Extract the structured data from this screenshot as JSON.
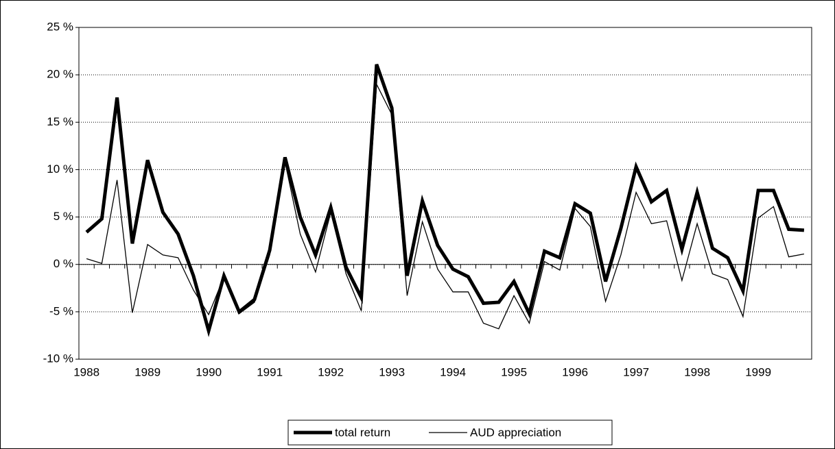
{
  "chart_data": {
    "type": "line",
    "categories": [
      "1988",
      null,
      null,
      null,
      "1989",
      null,
      null,
      null,
      "1990",
      null,
      null,
      null,
      "1991",
      null,
      null,
      null,
      "1992",
      null,
      null,
      null,
      "1993",
      null,
      null,
      null,
      "1994",
      null,
      null,
      null,
      "1995",
      null,
      null,
      null,
      "1996",
      null,
      null,
      null,
      "1997",
      null,
      null,
      null,
      "1998",
      null,
      null,
      null,
      "1999",
      null,
      null,
      null
    ],
    "series": [
      {
        "name": "total return",
        "color": "#000000",
        "values": [
          3.4,
          4.8,
          17.6,
          2.2,
          11.0,
          5.5,
          3.2,
          -1.2,
          -7.0,
          -1.2,
          -5.0,
          -3.7,
          1.5,
          11.3,
          5.0,
          1.0,
          6.0,
          -0.3,
          -3.5,
          21.1,
          16.5,
          -1.2,
          6.7,
          2.0,
          -0.5,
          -1.3,
          -4.1,
          -4.0,
          -1.8,
          -5.2,
          1.4,
          0.7,
          6.4,
          5.4,
          -1.8,
          3.8,
          10.3,
          6.6,
          7.8,
          1.6,
          7.6,
          1.7,
          0.7,
          -2.8,
          7.8,
          7.8,
          3.7,
          3.6
        ]
      },
      {
        "name": "AUD appreciation",
        "color": "#000000",
        "values": [
          0.6,
          0.1,
          8.9,
          -5.1,
          2.1,
          1.0,
          0.7,
          -2.7,
          -5.3,
          -1.3,
          -5.2,
          -4.0,
          1.0,
          10.8,
          3.2,
          -0.8,
          5.5,
          -1.0,
          -4.9,
          19.0,
          15.8,
          -3.3,
          4.5,
          -0.5,
          -2.9,
          -2.9,
          -6.2,
          -6.8,
          -3.3,
          -6.2,
          0.3,
          -0.6,
          5.9,
          4.0,
          -3.9,
          1.0,
          7.6,
          4.3,
          4.6,
          -1.7,
          4.3,
          -1.0,
          -1.6,
          -5.5,
          4.9,
          6.1,
          0.8,
          1.1
        ]
      }
    ],
    "ylim": [
      -10,
      25
    ],
    "yticks": [
      {
        "value": -10,
        "label": "-10 %"
      },
      {
        "value": -5,
        "label": "-5 %"
      },
      {
        "value": 0,
        "label": "0 %"
      },
      {
        "value": 5,
        "label": "5 %"
      },
      {
        "value": 10,
        "label": "10 %"
      },
      {
        "value": 15,
        "label": "15 %"
      },
      {
        "value": 20,
        "label": "20 %"
      },
      {
        "value": 25,
        "label": "25 %"
      }
    ],
    "grid": true,
    "legend": "bottom"
  }
}
